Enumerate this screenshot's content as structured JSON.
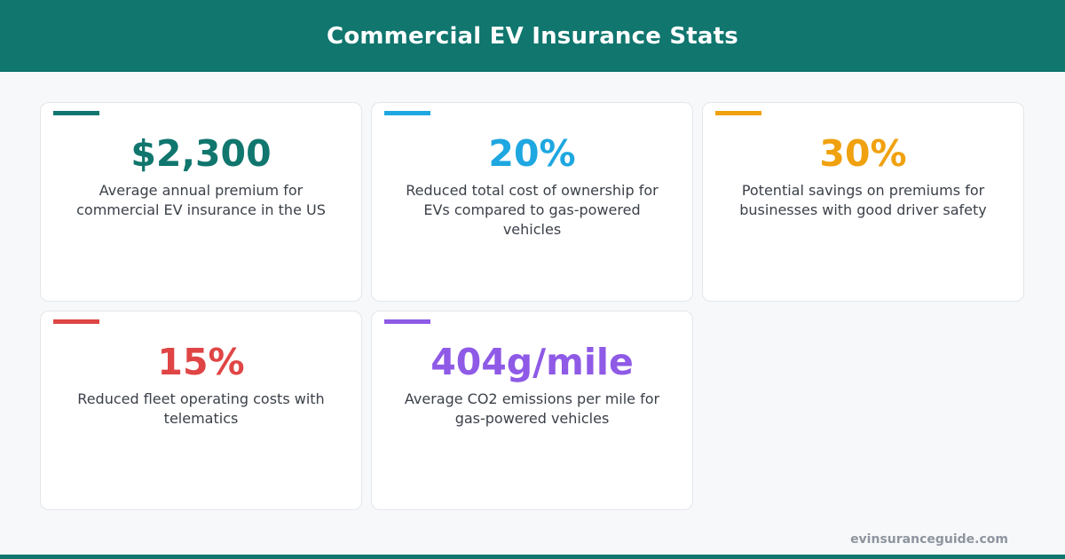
{
  "header": {
    "title": "Commercial EV Insurance Stats"
  },
  "cards": [
    {
      "value": "$2,300",
      "description": "Average annual premium for commercial EV insurance in the US",
      "color": "#10766e"
    },
    {
      "value": "20%",
      "description": "Reduced total cost of ownership for EVs compared to gas-powered vehicles",
      "color": "#1ea7e0"
    },
    {
      "value": "30%",
      "description": "Potential savings on premiums for businesses with good driver safety",
      "color": "#f0a10f"
    },
    {
      "value": "15%",
      "description": "Reduced fleet operating costs with telematics",
      "color": "#e04545"
    },
    {
      "value": "404g/mile",
      "description": "Average CO2 emissions per mile for gas-powered vehicles",
      "color": "#8e5ae6"
    }
  ],
  "footer": {
    "site": "evinsuranceguide.com"
  },
  "colors": {
    "brand": "#10766e",
    "background": "#f7f8fa"
  }
}
